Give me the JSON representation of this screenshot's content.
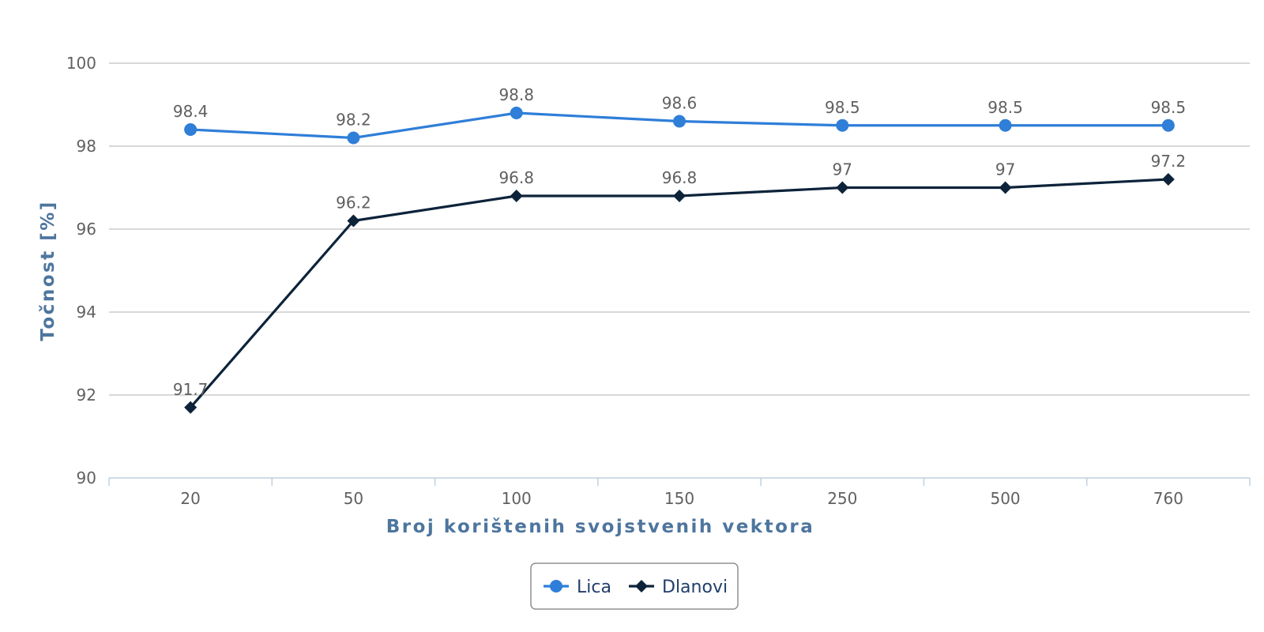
{
  "chart_data": {
    "type": "line",
    "title": "",
    "xlabel": "Broj korištenih svojstvenih vektora",
    "ylabel": "Točnost [%]",
    "categories": [
      "20",
      "50",
      "100",
      "150",
      "250",
      "500",
      "760"
    ],
    "ylim": [
      90,
      100
    ],
    "yticks": [
      90,
      92,
      94,
      96,
      98,
      100
    ],
    "grid": true,
    "legend": "bottom-center",
    "series": [
      {
        "name": "Lica",
        "color": "#2f7ed8",
        "marker": "circle",
        "values": [
          98.4,
          98.2,
          98.8,
          98.6,
          98.5,
          98.5,
          98.5
        ]
      },
      {
        "name": "Dlanovi",
        "color": "#0d233a",
        "marker": "diamond",
        "values": [
          91.7,
          96.2,
          96.8,
          96.8,
          97,
          97,
          97.2
        ]
      }
    ]
  }
}
